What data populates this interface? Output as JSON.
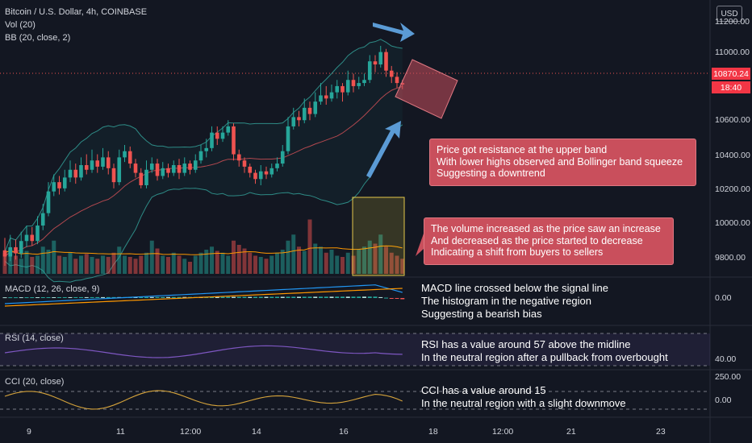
{
  "header": {
    "title": "Bitcoin / U.S. Dollar, 4h, COINBASE",
    "volume": "Vol (20)",
    "bb": "BB (20, close, 2)",
    "macd": "MACD (12, 26, close, 9)",
    "rsi": "RSI (14, close)",
    "cci": "CCI (20, close)"
  },
  "currency": "USD",
  "price": {
    "current": "10870.24",
    "countdown": "18:40"
  },
  "price_axis": [
    "11000.00",
    "10600.00",
    "10400.00",
    "10200.00",
    "10000.00",
    "9800.00"
  ],
  "price_axis_partial": [
    "11200.00",
    "108"
  ],
  "macd_axis": "0.00",
  "rsi_axis": "40.00",
  "cci_axis": [
    "250.00",
    "0.00"
  ],
  "time_axis": [
    "9",
    "11",
    "12:00",
    "14",
    "16",
    "18",
    "12:00",
    "21",
    "23"
  ],
  "annotations": {
    "resistance": [
      "Price got resistance at the upper band",
      "With lower highs observed and Bollinger band squeeze",
      "Suggesting a downtrend"
    ],
    "volume": [
      "The volume increased as the price saw an increase",
      "And decreased as the price started to decrease",
      "Indicating a shift from buyers to sellers"
    ],
    "macd": [
      "MACD line crossed below the signal line",
      "The histogram in the negative region",
      "Suggesting a bearish bias"
    ],
    "rsi": [
      "RSI has a value around 57 above the midline",
      "In the neutral region after a pullback from overbought"
    ],
    "cci": [
      "CCI has a value around 15",
      "In the neutral region with a slight downmove"
    ]
  },
  "colors": {
    "up": "#26a69a",
    "down": "#ef5350",
    "background": "#131722",
    "box": "#c94f5c",
    "bb_upper": "#2e8b86",
    "bb_basis": "#b2484f",
    "macd": "#2196f3",
    "signal": "#ff9800",
    "rsi": "#7e57c2",
    "cci": "#d5a33b",
    "arrow": "#5b9bd5"
  },
  "chart_data": {
    "type": "candlestick",
    "ylim": [
      9700,
      11260
    ],
    "candles": [
      [
        9800,
        9760,
        9880,
        9700
      ],
      [
        9760,
        9820,
        9900,
        9730
      ],
      [
        9820,
        9780,
        9870,
        9740
      ],
      [
        9780,
        9860,
        9920,
        9750
      ],
      [
        9860,
        9900,
        9960,
        9820
      ],
      [
        9900,
        9860,
        9950,
        9830
      ],
      [
        9860,
        9960,
        10020,
        9840
      ],
      [
        9960,
        10040,
        10100,
        9930
      ],
      [
        10040,
        10180,
        10240,
        10020
      ],
      [
        10180,
        10240,
        10290,
        10150
      ],
      [
        10240,
        10200,
        10280,
        10160
      ],
      [
        10200,
        10270,
        10320,
        10180
      ],
      [
        10270,
        10320,
        10380,
        10240
      ],
      [
        10320,
        10270,
        10360,
        10230
      ],
      [
        10270,
        10350,
        10400,
        10250
      ],
      [
        10350,
        10320,
        10420,
        10290
      ],
      [
        10320,
        10380,
        10450,
        10300
      ],
      [
        10380,
        10340,
        10420,
        10300
      ],
      [
        10340,
        10400,
        10460,
        10320
      ],
      [
        10400,
        10330,
        10440,
        10290
      ],
      [
        10330,
        10240,
        10360,
        10200
      ],
      [
        10240,
        10400,
        10450,
        10220
      ],
      [
        10400,
        10440,
        10480,
        10370
      ],
      [
        10440,
        10360,
        10470,
        10330
      ],
      [
        10360,
        10300,
        10390,
        10270
      ],
      [
        10300,
        10220,
        10330,
        10200
      ],
      [
        10220,
        10320,
        10380,
        10200
      ],
      [
        10320,
        10360,
        10400,
        10300
      ],
      [
        10360,
        10280,
        10390,
        10250
      ],
      [
        10280,
        10330,
        10370,
        10260
      ],
      [
        10330,
        10300,
        10360,
        10270
      ],
      [
        10300,
        10350,
        10380,
        10280
      ],
      [
        10350,
        10300,
        10390,
        10260
      ],
      [
        10300,
        10360,
        10400,
        10280
      ],
      [
        10360,
        10320,
        10380,
        10290
      ],
      [
        10320,
        10380,
        10420,
        10300
      ],
      [
        10380,
        10440,
        10480,
        10360
      ],
      [
        10440,
        10460,
        10520,
        10400
      ],
      [
        10460,
        10560,
        10600,
        10440
      ],
      [
        10560,
        10520,
        10600,
        10480
      ],
      [
        10520,
        10560,
        10600,
        10500
      ],
      [
        10560,
        10600,
        10640,
        10540
      ],
      [
        10600,
        10420,
        10620,
        10380
      ],
      [
        10420,
        10380,
        10450,
        10340
      ],
      [
        10380,
        10340,
        10400,
        10300
      ],
      [
        10340,
        10300,
        10360,
        10270
      ],
      [
        10300,
        10260,
        10320,
        10230
      ],
      [
        10260,
        10310,
        10350,
        10220
      ],
      [
        10310,
        10290,
        10340,
        10260
      ],
      [
        10290,
        10330,
        10360,
        10270
      ],
      [
        10330,
        10360,
        10400,
        10310
      ],
      [
        10360,
        10440,
        10480,
        10340
      ],
      [
        10440,
        10600,
        10660,
        10420
      ],
      [
        10600,
        10660,
        10720,
        10580
      ],
      [
        10660,
        10640,
        10700,
        10600
      ],
      [
        10640,
        10720,
        10780,
        10620
      ],
      [
        10720,
        10680,
        10760,
        10640
      ],
      [
        10680,
        10760,
        10820,
        10660
      ],
      [
        10760,
        10800,
        10880,
        10740
      ],
      [
        10800,
        10780,
        10860,
        10740
      ],
      [
        10780,
        10820,
        10870,
        10760
      ],
      [
        10820,
        10860,
        10900,
        10780
      ],
      [
        10860,
        10820,
        10880,
        10760
      ],
      [
        10820,
        10900,
        10960,
        10800
      ],
      [
        10900,
        10860,
        10940,
        10820
      ],
      [
        10860,
        10880,
        10920,
        10840
      ],
      [
        10880,
        10900,
        10940,
        10860
      ],
      [
        10900,
        11020,
        11060,
        10880
      ],
      [
        11020,
        11000,
        11060,
        10950
      ],
      [
        11000,
        11080,
        11120,
        10980
      ],
      [
        11080,
        10960,
        11100,
        10920
      ],
      [
        10960,
        10920,
        10990,
        10880
      ],
      [
        10920,
        10880,
        10950,
        10850
      ],
      [
        10880,
        10870,
        10900,
        10840
      ]
    ],
    "volume": [
      0.35,
      0.42,
      0.3,
      0.25,
      0.38,
      0.28,
      0.3,
      0.45,
      0.4,
      0.55,
      0.3,
      0.28,
      0.35,
      0.25,
      0.3,
      0.33,
      0.28,
      0.25,
      0.3,
      0.28,
      0.35,
      0.45,
      0.3,
      0.28,
      0.25,
      0.3,
      0.35,
      0.55,
      0.42,
      0.3,
      0.28,
      0.35,
      0.3,
      0.25,
      0.2,
      0.3,
      0.35,
      0.4,
      0.45,
      0.38,
      0.35,
      0.3,
      0.55,
      0.48,
      0.42,
      0.35,
      0.3,
      0.28,
      0.25,
      0.3,
      0.35,
      0.4,
      0.55,
      0.65,
      0.45,
      0.38,
      0.9,
      0.5,
      0.45,
      0.35,
      0.4,
      0.3,
      0.28,
      0.35,
      0.3,
      0.4,
      0.45,
      0.55,
      0.5,
      0.65,
      0.45,
      0.35,
      0.3,
      0.25
    ]
  }
}
